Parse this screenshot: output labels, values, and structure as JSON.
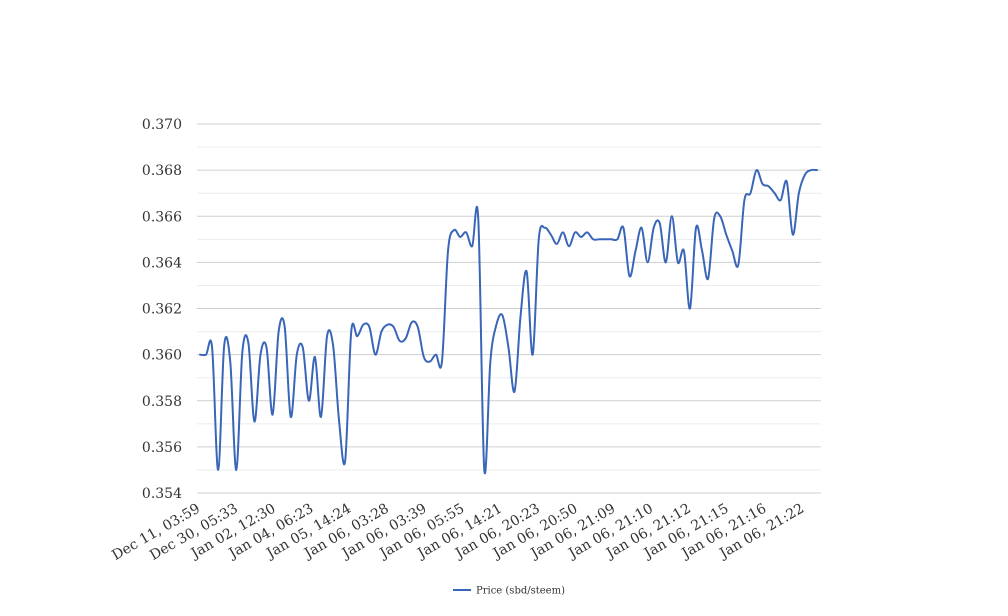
{
  "chart_data": {
    "type": "line",
    "title": "",
    "xlabel": "",
    "ylabel": "",
    "ylim": [
      0.354,
      0.37
    ],
    "y_ticks": [
      "0.354",
      "0.356",
      "0.358",
      "0.360",
      "0.362",
      "0.364",
      "0.366",
      "0.368",
      "0.370"
    ],
    "x_tick_labels": [
      "Dec 11, 03:59",
      "Dec 30, 05:33",
      "Jan 02, 12:30",
      "Jan 04, 06:23",
      "Jan 05, 14:24",
      "Jan 06, 03:28",
      "Jan 06, 03:39",
      "Jan 06, 05:55",
      "Jan 06, 14:21",
      "Jan 06, 20:23",
      "Jan 06, 20:50",
      "Jan 06, 21:09",
      "Jan 06, 21:10",
      "Jan 06, 21:12",
      "Jan 06, 21:15",
      "Jan 06, 21:16",
      "Jan 06, 21:22"
    ],
    "grid": true,
    "legend_position": "bottom-center",
    "color": "#3a66b8",
    "series": [
      {
        "name": "Price (sbd/steem)",
        "values": [
          0.36,
          0.36,
          0.3603,
          0.355,
          0.3604,
          0.3597,
          0.355,
          0.3601,
          0.3605,
          0.3571,
          0.36,
          0.3603,
          0.3574,
          0.361,
          0.3612,
          0.3573,
          0.36,
          0.3603,
          0.358,
          0.3599,
          0.3573,
          0.3608,
          0.3604,
          0.3571,
          0.3554,
          0.361,
          0.3608,
          0.3613,
          0.3612,
          0.36,
          0.361,
          0.3613,
          0.3612,
          0.3606,
          0.3607,
          0.3614,
          0.3612,
          0.3599,
          0.3597,
          0.36,
          0.3597,
          0.3645,
          0.3654,
          0.3651,
          0.3653,
          0.3647,
          0.3659,
          0.355,
          0.3597,
          0.3613,
          0.3617,
          0.3603,
          0.3584,
          0.3617,
          0.3636,
          0.36,
          0.365,
          0.3655,
          0.3652,
          0.3648,
          0.3653,
          0.3647,
          0.3653,
          0.3651,
          0.3653,
          0.365,
          0.365,
          0.365,
          0.365,
          0.365,
          0.3655,
          0.3634,
          0.3645,
          0.3655,
          0.364,
          0.3655,
          0.3657,
          0.364,
          0.366,
          0.364,
          0.3645,
          0.362,
          0.3655,
          0.3645,
          0.3633,
          0.3659,
          0.366,
          0.3652,
          0.3645,
          0.3639,
          0.3667,
          0.367,
          0.368,
          0.3674,
          0.3673,
          0.367,
          0.3667,
          0.3675,
          0.3652,
          0.367,
          0.3678,
          0.368,
          0.368
        ]
      }
    ]
  }
}
